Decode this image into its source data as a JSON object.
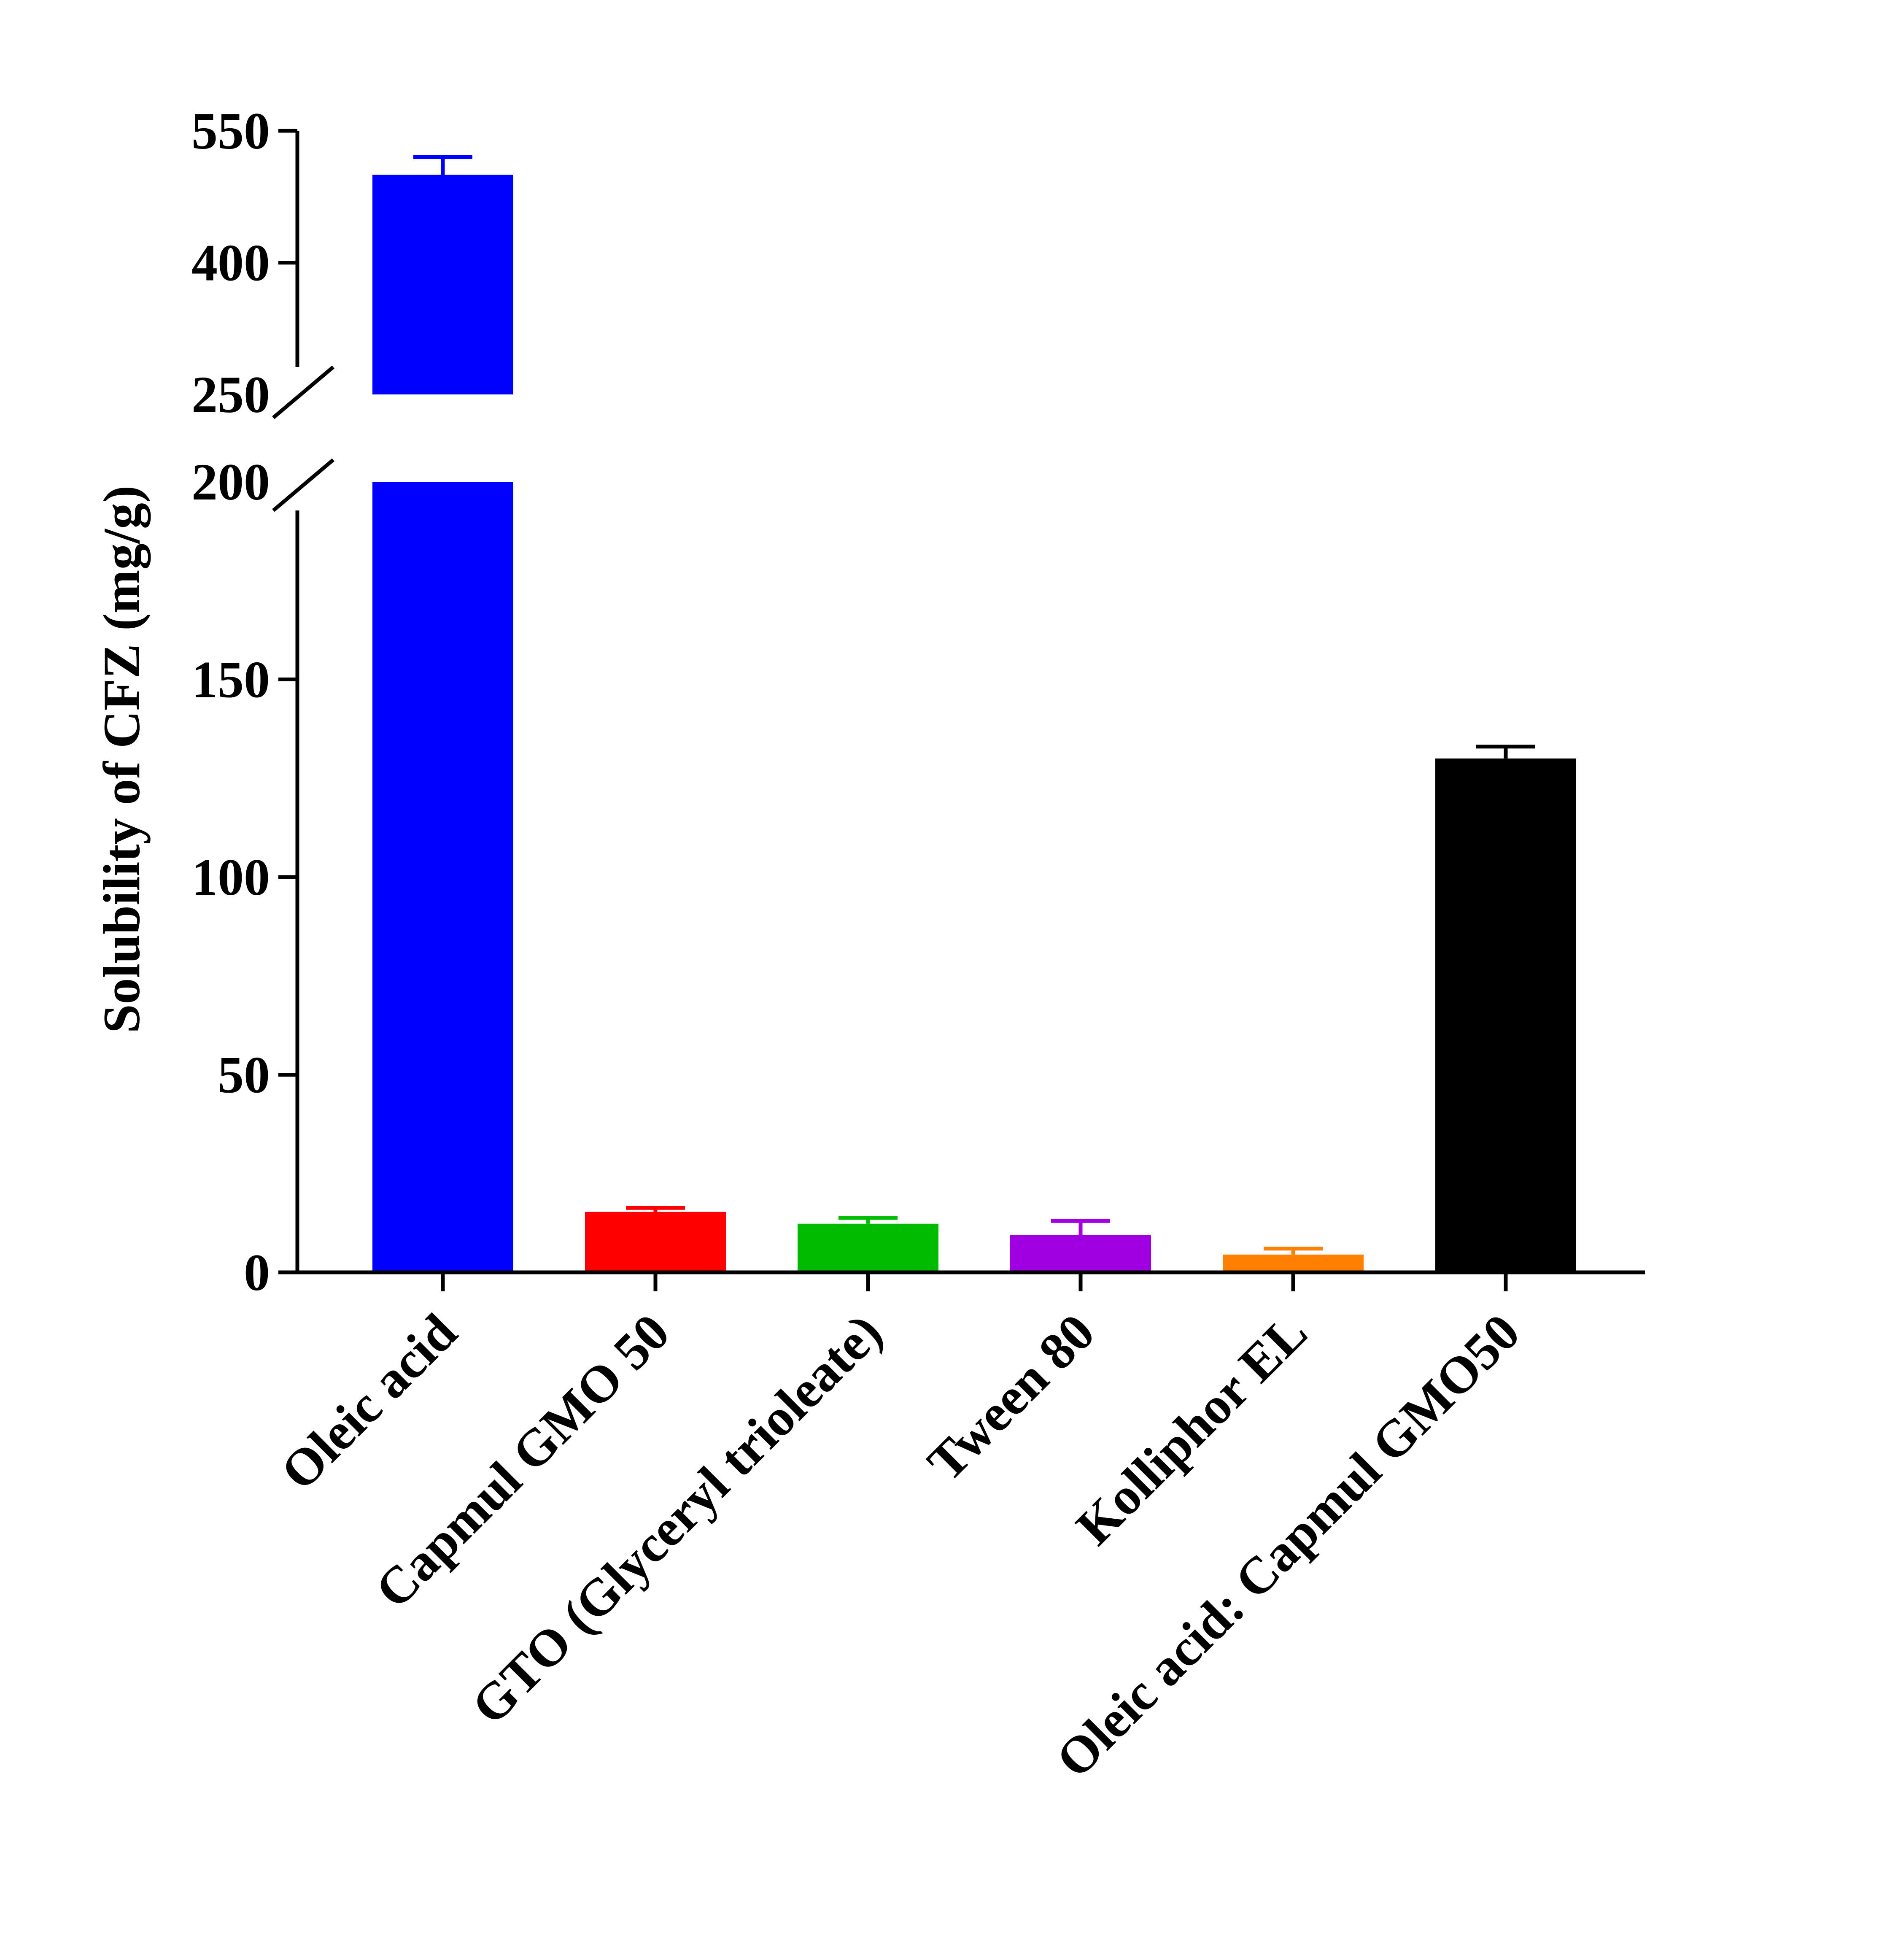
{
  "chart_data": {
    "type": "bar",
    "ylabel": "Solubility of CFZ (mg/g)",
    "xlabel": "",
    "categories": [
      "Oleic acid",
      "Capmul GMO 50",
      "GTO (Glyceryl trioleate)",
      "Tween 80",
      "Kolliphor EL",
      "Oleic acid: Capmul GMO50"
    ],
    "values": [
      500,
      15.3,
      12.3,
      9.5,
      4.5,
      130
    ],
    "errors": [
      20,
      1.0,
      1.5,
      3.5,
      1.5,
      3.0
    ],
    "colors": [
      "#0000FF",
      "#FF0000",
      "#00BB00",
      "#A000E0",
      "#FF8000",
      "#000000"
    ],
    "y_axis_broken": true,
    "lower_segment": {
      "ylim": [
        0,
        200
      ],
      "ticks": [
        "0",
        "50",
        "100",
        "150",
        "200"
      ]
    },
    "upper_segment": {
      "ylim": [
        250,
        550
      ],
      "ticks": [
        "250",
        "400",
        "550"
      ]
    },
    "grid": false,
    "legend": "none"
  }
}
